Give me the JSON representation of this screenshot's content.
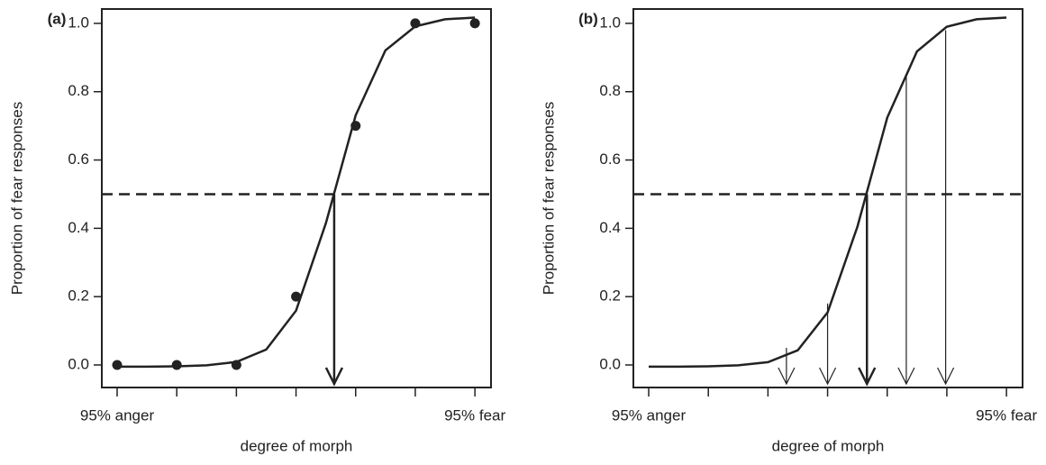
{
  "chart_data": [
    {
      "type": "line",
      "label": "(a)",
      "xlabel": "degree of morph",
      "ylabel": "Proportion of fear responses",
      "xlim": [
        0.743,
        7.27
      ],
      "ylim": [
        -0.066,
        1.042
      ],
      "xticks": [
        {
          "value": 1,
          "label": "95% anger"
        },
        {
          "value": 2,
          "label": null
        },
        {
          "value": 3,
          "label": null
        },
        {
          "value": 4,
          "label": null
        },
        {
          "value": 5,
          "label": null
        },
        {
          "value": 6,
          "label": null
        },
        {
          "value": 7,
          "label": "95% fear"
        }
      ],
      "yticks": [
        {
          "value": 0,
          "label": "0.0"
        },
        0.2,
        0.4,
        0.6,
        0.8,
        {
          "value": 1,
          "label": "1.0"
        }
      ],
      "hline": 0.5,
      "points": {
        "x": [
          1,
          2,
          3,
          4,
          5,
          6,
          7
        ],
        "values": [
          0,
          0,
          0,
          0.2,
          0.7,
          1,
          1
        ]
      },
      "curve": {
        "x": [
          1,
          1.5,
          2,
          2.5,
          3,
          3.5,
          4,
          4.5,
          5,
          5.5,
          6,
          6.5,
          7
        ],
        "values": [
          -0.005,
          -0.005,
          -0.004,
          -0.001,
          0.009,
          0.045,
          0.159,
          0.415,
          0.731,
          0.921,
          0.991,
          1.012,
          1.017
        ]
      },
      "arrows": {
        "x": [
          4.64
        ],
        "values": [
          0.5
        ],
        "thick": [
          true
        ]
      }
    },
    {
      "type": "line",
      "label": "(b)",
      "xlabel": "degree of morph",
      "ylabel": "Proportion of fear responses",
      "xlim": [
        0.743,
        7.27
      ],
      "ylim": [
        -0.066,
        1.042
      ],
      "xticks": [
        {
          "value": 1,
          "label": "95% anger"
        },
        {
          "value": 2,
          "label": null
        },
        {
          "value": 3,
          "label": null
        },
        {
          "value": 4,
          "label": null
        },
        {
          "value": 5,
          "label": null
        },
        {
          "value": 6,
          "label": null
        },
        {
          "value": 7,
          "label": "95% fear"
        }
      ],
      "yticks": [
        {
          "value": 0,
          "label": "0.0"
        },
        0.2,
        0.4,
        0.6,
        0.8,
        {
          "value": 1,
          "label": "1.0"
        }
      ],
      "hline": 0.5,
      "curve": {
        "x": [
          1,
          1.5,
          2,
          2.5,
          3,
          3.5,
          4,
          4.5,
          5,
          5.5,
          6,
          6.5,
          7
        ],
        "values": [
          -0.005,
          -0.005,
          -0.004,
          -0.001,
          0.008,
          0.043,
          0.154,
          0.405,
          0.724,
          0.918,
          0.99,
          1.012,
          1.017
        ]
      },
      "arrows": {
        "x": [
          3.31,
          4.0,
          4.66,
          5.32,
          5.98
        ],
        "values": [
          0.05,
          0.18,
          0.5,
          0.85,
          0.98
        ],
        "thick": [
          false,
          false,
          true,
          false,
          false
        ]
      }
    }
  ]
}
